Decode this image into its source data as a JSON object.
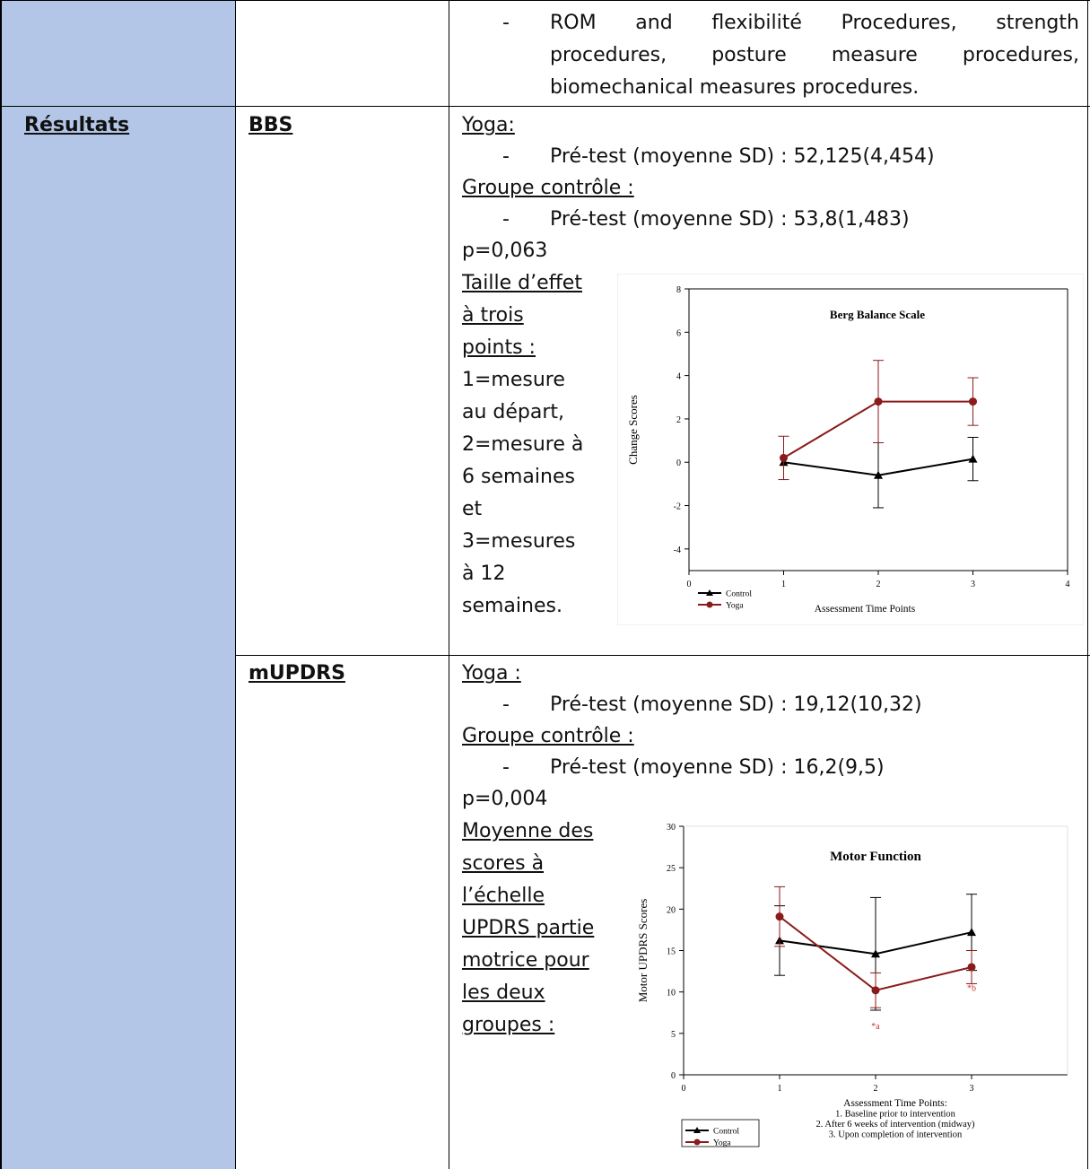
{
  "top_cell": {
    "line1": [
      "ROM",
      "and",
      "flexibilité",
      "Procedures,",
      "strength"
    ],
    "line2": [
      "procedures,",
      "posture",
      "measure",
      "procedures,"
    ],
    "line3": "biomechanical measures procedures."
  },
  "section_label": "Résultats",
  "bbs": {
    "label": "BBS",
    "yoga_heading": "Yoga:",
    "yoga_pretest": "Pré-test (moyenne SD) : 52,125(4,454)",
    "control_heading": "Groupe contrôle :",
    "control_pretest": "Pré-test (moyenne SD) : 53,8(1,483)",
    "p_value": "p=0,063",
    "caption_underlined": [
      "Taille d’effet",
      "à trois",
      "points :"
    ],
    "caption_plain": [
      "1=mesure",
      "au départ,",
      "2=mesure à",
      "6 semaines",
      "et",
      "3=mesures",
      "à 12",
      "semaines."
    ]
  },
  "mupdrs": {
    "label": "mUPDRS",
    "yoga_heading": "Yoga :",
    "yoga_pretest": "Pré-test (moyenne SD) : 19,12(10,32)",
    "control_heading": "Groupe contrôle :",
    "control_pretest": "Pré-test (moyenne SD) : 16,2(9,5)",
    "p_value": "p=0,004",
    "caption_underlined": [
      "Moyenne des",
      "scores à",
      "l’échelle",
      "UPDRS partie",
      "motrice pour",
      "les deux",
      "groupes :"
    ]
  },
  "chart_data": [
    {
      "type": "line",
      "title": "Berg Balance Scale",
      "xlabel": "Assessment Time Points",
      "ylabel": "Change Scores",
      "xlim": [
        0,
        4
      ],
      "ylim": [
        -5,
        8
      ],
      "xticks": [
        0,
        1,
        2,
        3,
        4
      ],
      "yticks": [
        -4,
        -2,
        0,
        2,
        4,
        6,
        8
      ],
      "legend": "bottom-left",
      "series": [
        {
          "name": "Control",
          "color": "#000000",
          "marker": "triangle",
          "x": [
            1,
            2,
            3
          ],
          "y": [
            0.0,
            -0.6,
            0.15
          ],
          "err": [
            0.0,
            1.5,
            1.0
          ]
        },
        {
          "name": "Yoga",
          "color": "#8b1a1a",
          "marker": "circle",
          "x": [
            1,
            2,
            3
          ],
          "y": [
            0.2,
            2.8,
            2.8
          ],
          "err": [
            1.0,
            1.9,
            1.1
          ]
        }
      ]
    },
    {
      "type": "line",
      "title": "Motor Function",
      "xlabel": "Assessment Time Points:",
      "xlabel_notes": [
        "1. Baseline prior to intervention",
        "2. After 6 weeks of intervention (midway)",
        "3. Upon completion of intervention"
      ],
      "ylabel": "Motor UPDRS Scores",
      "xlim": [
        0,
        4
      ],
      "ylim": [
        0,
        30
      ],
      "xticks": [
        0,
        1,
        2,
        3
      ],
      "yticks": [
        0,
        5,
        10,
        15,
        20,
        25,
        30
      ],
      "legend": "bottom-left",
      "annotations": [
        "*a",
        "*b"
      ],
      "series": [
        {
          "name": "Control",
          "color": "#000000",
          "marker": "triangle",
          "x": [
            1,
            2,
            3
          ],
          "y": [
            16.2,
            14.6,
            17.2
          ],
          "err": [
            4.2,
            6.8,
            4.6
          ]
        },
        {
          "name": "Yoga",
          "color": "#8b1a1a",
          "marker": "circle",
          "x": [
            1,
            2,
            3
          ],
          "y": [
            19.1,
            10.2,
            13.0
          ],
          "err": [
            3.6,
            2.1,
            2.0
          ]
        }
      ]
    }
  ]
}
